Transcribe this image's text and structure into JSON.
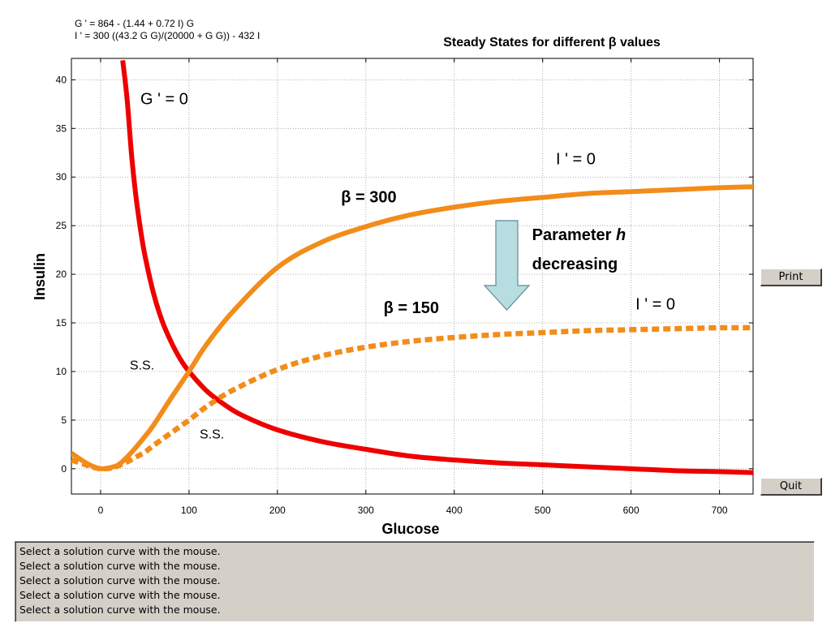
{
  "equations": {
    "g_prime": "G ' = 864 - (1.44 + 0.72 I) G",
    "i_prime": "I ' = 300 ((43.2 G G)/(20000 + G G)) - 432 I"
  },
  "buttons": {
    "print": "Print",
    "quit": "Quit"
  },
  "status_messages": [
    "Select a solution curve with the mouse.",
    "Select a solution curve with the mouse.",
    "Select a solution curve with the mouse.",
    "Select a solution curve with the mouse.",
    "Select a solution curve with the mouse."
  ],
  "chart_data": {
    "type": "line",
    "title": "Steady States for different β values",
    "xlabel": "Glucose",
    "ylabel": "Insulin",
    "xlim": [
      -33,
      738
    ],
    "ylim": [
      -2.6,
      42.2
    ],
    "xticks": [
      0,
      100,
      200,
      300,
      400,
      500,
      600,
      700
    ],
    "yticks": [
      0,
      5,
      10,
      15,
      20,
      25,
      30,
      35,
      40
    ],
    "grid": true,
    "series": [
      {
        "name": "G ' = 0",
        "color": "#ee0000",
        "style": "solid",
        "x": [
          25,
          30,
          35,
          40,
          45,
          50,
          60,
          70,
          80,
          90,
          100,
          120,
          140,
          160,
          200,
          250,
          300,
          350,
          400,
          450,
          500,
          550,
          600,
          650,
          700,
          738
        ],
        "y": [
          42,
          38,
          32.3,
          28,
          24.7,
          22,
          18,
          15.1,
          13,
          11.3,
          10,
          8,
          6.6,
          5.5,
          4,
          2.8,
          2,
          1.3,
          0.9,
          0.6,
          0.4,
          0.2,
          0,
          -0.2,
          -0.3,
          -0.4
        ]
      },
      {
        "name": "β = 300",
        "color": "#f28c1a",
        "style": "solid",
        "x": [
          -33,
          -20,
          -10,
          0,
          10,
          20,
          30,
          40,
          50,
          60,
          80,
          100,
          120,
          150,
          200,
          250,
          300,
          350,
          400,
          450,
          500,
          550,
          600,
          650,
          700,
          738
        ],
        "y": [
          1.6,
          0.8,
          0.3,
          0,
          0.1,
          0.4,
          1.2,
          2.2,
          3.3,
          4.5,
          7.3,
          10,
          12.8,
          16.2,
          20.7,
          23.3,
          24.9,
          26.1,
          26.9,
          27.5,
          27.9,
          28.3,
          28.5,
          28.7,
          28.9,
          29
        ]
      },
      {
        "name": "β = 150",
        "color": "#f28c1a",
        "style": "dashed",
        "x": [
          -33,
          -20,
          -10,
          0,
          10,
          20,
          30,
          40,
          50,
          60,
          80,
          100,
          120,
          150,
          200,
          250,
          300,
          350,
          400,
          450,
          500,
          550,
          600,
          650,
          700,
          738
        ],
        "y": [
          0.9,
          0.5,
          0.2,
          0,
          0.05,
          0.3,
          0.7,
          1.2,
          1.7,
          2.4,
          3.7,
          5,
          6.4,
          8.1,
          10.2,
          11.6,
          12.5,
          13.1,
          13.5,
          13.8,
          14,
          14.2,
          14.3,
          14.4,
          14.5,
          14.5
        ]
      }
    ],
    "annotations": [
      {
        "text": "G ' = 0",
        "x": 45,
        "y": 37.5,
        "weight": "normal"
      },
      {
        "text": "I ' = 0",
        "x": 515,
        "y": 31.3,
        "weight": "normal"
      },
      {
        "text": "β = 300",
        "x": 272,
        "y": 27.4,
        "weight": "bold"
      },
      {
        "text": "Parameter h",
        "x": 488,
        "y": 23.5,
        "weight": "bold"
      },
      {
        "text": "decreasing",
        "x": 488,
        "y": 20.5,
        "weight": "bold"
      },
      {
        "text": "I ' = 0",
        "x": 605,
        "y": 16.4,
        "weight": "normal"
      },
      {
        "text": "β = 150",
        "x": 320,
        "y": 16,
        "weight": "bold"
      },
      {
        "text": "S.S.",
        "x": 33,
        "y": 10.2,
        "weight": "normal"
      },
      {
        "text": "S.S.",
        "x": 112,
        "y": 3.1,
        "weight": "normal"
      }
    ]
  }
}
